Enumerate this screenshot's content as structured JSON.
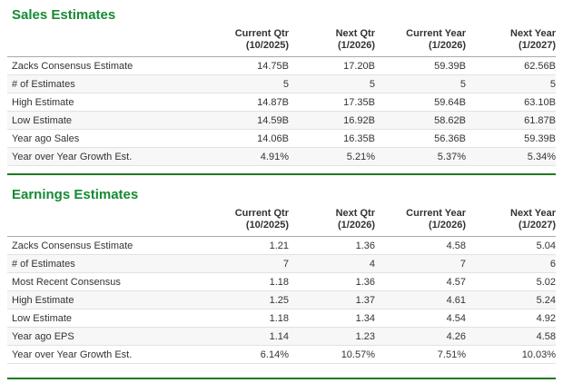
{
  "colors": {
    "title_green": "#168a34",
    "divider_green": "#1e7a1e",
    "row_stripe": "#f7f7f7",
    "header_rule": "#a8a8a8",
    "row_rule": "#e2e2e2",
    "text": "#333333"
  },
  "sections": [
    {
      "id": "sales-estimates",
      "title": "Sales Estimates",
      "columns": [
        {
          "label": "Current Qtr",
          "sub": "(10/2025)"
        },
        {
          "label": "Next Qtr",
          "sub": "(1/2026)"
        },
        {
          "label": "Current Year",
          "sub": "(1/2026)"
        },
        {
          "label": "Next Year",
          "sub": "(1/2027)"
        }
      ],
      "rows": [
        {
          "label": "Zacks Consensus Estimate",
          "values": [
            "14.75B",
            "17.20B",
            "59.39B",
            "62.56B"
          ]
        },
        {
          "label": "# of Estimates",
          "values": [
            "5",
            "5",
            "5",
            "5"
          ]
        },
        {
          "label": "High Estimate",
          "values": [
            "14.87B",
            "17.35B",
            "59.64B",
            "63.10B"
          ]
        },
        {
          "label": "Low Estimate",
          "values": [
            "14.59B",
            "16.92B",
            "58.62B",
            "61.87B"
          ]
        },
        {
          "label": "Year ago Sales",
          "values": [
            "14.06B",
            "16.35B",
            "56.36B",
            "59.39B"
          ]
        },
        {
          "label": "Year over Year Growth Est.",
          "values": [
            "4.91%",
            "5.21%",
            "5.37%",
            "5.34%"
          ]
        }
      ]
    },
    {
      "id": "earnings-estimates",
      "title": "Earnings Estimates",
      "columns": [
        {
          "label": "Current Qtr",
          "sub": "(10/2025)"
        },
        {
          "label": "Next Qtr",
          "sub": "(1/2026)"
        },
        {
          "label": "Current Year",
          "sub": "(1/2026)"
        },
        {
          "label": "Next Year",
          "sub": "(1/2027)"
        }
      ],
      "rows": [
        {
          "label": "Zacks Consensus Estimate",
          "values": [
            "1.21",
            "1.36",
            "4.58",
            "5.04"
          ]
        },
        {
          "label": "# of Estimates",
          "values": [
            "7",
            "4",
            "7",
            "6"
          ]
        },
        {
          "label": "Most Recent Consensus",
          "values": [
            "1.18",
            "1.36",
            "4.57",
            "5.02"
          ]
        },
        {
          "label": "High Estimate",
          "values": [
            "1.25",
            "1.37",
            "4.61",
            "5.24"
          ]
        },
        {
          "label": "Low Estimate",
          "values": [
            "1.18",
            "1.34",
            "4.54",
            "4.92"
          ]
        },
        {
          "label": "Year ago EPS",
          "values": [
            "1.14",
            "1.23",
            "4.26",
            "4.58"
          ]
        },
        {
          "label": "Year over Year Growth Est.",
          "values": [
            "6.14%",
            "10.57%",
            "7.51%",
            "10.03%"
          ]
        }
      ]
    }
  ]
}
